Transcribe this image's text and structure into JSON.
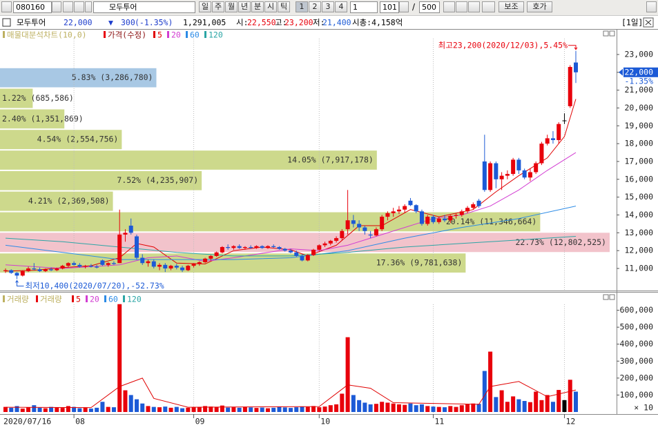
{
  "toolbar": {
    "code": "080160",
    "name": "모두투어",
    "periods": [
      "일",
      "주",
      "월",
      "년",
      "분",
      "시",
      "틱"
    ],
    "numbers": [
      "1",
      "2",
      "3",
      "4"
    ],
    "unit": "1",
    "count": "101",
    "separator": "/",
    "total": "500",
    "buttons": [
      "보조",
      "호가"
    ]
  },
  "info": {
    "name": "모두투어",
    "price": "22,000",
    "arrow": "▼",
    "change": "300",
    "change_pct": "(-1.35%)",
    "volume": "1,291,005",
    "open_label": "시:",
    "open": "22,550",
    "high_label": "고:",
    "high": "23,200",
    "low_label": "저:",
    "low": "21,400",
    "cap": "시총:4,158억",
    "period": "[1일]"
  },
  "chart_data": [
    {
      "type": "candlestick",
      "legend_title": "매물대분석차트(10,0)",
      "legend_title_color": "#bdb060",
      "up_color": "#e8000b",
      "down_color": "#1c5ad6",
      "flat_color": "#000000",
      "ylim": [
        9800,
        24430
      ],
      "yticks": [
        {
          "value": 11000,
          "label": "11,000"
        },
        {
          "value": 12000,
          "label": "12,000"
        },
        {
          "value": 13000,
          "label": "13,000"
        },
        {
          "value": 14000,
          "label": "14,000"
        },
        {
          "value": 15000,
          "label": "15,000"
        },
        {
          "value": 16000,
          "label": "16,000"
        },
        {
          "value": 17000,
          "label": "17,000"
        },
        {
          "value": 18000,
          "label": "18,000"
        },
        {
          "value": 19000,
          "label": "19,000"
        },
        {
          "value": 20000,
          "label": "20,000"
        },
        {
          "value": 21000,
          "label": "21,000"
        },
        {
          "value": 22000,
          "label": "22,000"
        },
        {
          "value": 23000,
          "label": "23,000"
        }
      ],
      "current": {
        "price": "22,000",
        "change": "-1.35%",
        "color": "#1c5ad6"
      },
      "annotations": {
        "high": "최고23,200(2020/12/03),5.45%",
        "low": "최저10,400(2020/07/20),-52.73%",
        "high_color": "#e8000b",
        "low_color": "#1c5ad6"
      },
      "series": [
        {
          "name": "가격(수정)",
          "color": "#e8000b",
          "open": [
            10850,
            10900,
            10750,
            10600,
            10850,
            11000,
            10950,
            10850,
            10950,
            10900,
            11000,
            11150,
            11300,
            11200,
            11100,
            11150,
            11100,
            11450,
            11200,
            11300,
            11300,
            12900,
            13400,
            12800,
            11600,
            11300,
            11400,
            11100,
            11200,
            11000,
            11150,
            11050,
            10900,
            11150,
            11250,
            11350,
            11550,
            11700,
            11900,
            12200,
            12150,
            12250,
            12150,
            12200,
            12150,
            12250,
            12150,
            12250,
            12200,
            12100,
            12000,
            11900,
            11700,
            11450,
            11750,
            12050,
            12300,
            12400,
            12550,
            12700,
            13200,
            13700,
            13500,
            13300,
            12900,
            12850,
            13200,
            13900,
            14100,
            14200,
            14300,
            14800,
            14550,
            14200,
            13500,
            13900,
            13600,
            13800,
            13700,
            13950,
            14000,
            14200,
            14400,
            14800,
            17000,
            15400,
            16900,
            16000,
            16200,
            16300,
            17100,
            16500,
            16100,
            16400,
            16900,
            18000,
            18300,
            18200,
            19300,
            20100,
            22550
          ],
          "high": [
            11000,
            10950,
            10800,
            10900,
            11100,
            11300,
            11050,
            11000,
            11050,
            11050,
            11200,
            11350,
            11400,
            11300,
            11200,
            11250,
            11200,
            11500,
            11350,
            11400,
            14300,
            13200,
            13800,
            12900,
            11800,
            11500,
            11500,
            11300,
            11300,
            11200,
            11250,
            11150,
            11200,
            11300,
            11400,
            11600,
            11750,
            11950,
            12250,
            12350,
            12300,
            12350,
            12250,
            12300,
            12300,
            12300,
            12300,
            12350,
            12250,
            12150,
            12100,
            12000,
            11800,
            11800,
            12100,
            12350,
            12500,
            12600,
            12800,
            13200,
            15400,
            14000,
            13700,
            13400,
            13100,
            13300,
            14000,
            14200,
            14400,
            14500,
            14600,
            14950,
            14600,
            14300,
            14000,
            14000,
            13900,
            14000,
            14000,
            14100,
            14300,
            14500,
            14700,
            14900,
            18500,
            17000,
            17000,
            16400,
            16500,
            17200,
            17200,
            16600,
            16600,
            17000,
            18100,
            18500,
            18700,
            19200,
            19700,
            22400,
            23200
          ],
          "low": [
            10750,
            10700,
            10400,
            10550,
            10800,
            10900,
            10800,
            10800,
            10850,
            10850,
            10950,
            11050,
            11150,
            11050,
            11000,
            11050,
            11000,
            11150,
            11100,
            11200,
            11300,
            12500,
            12900,
            11500,
            11200,
            11100,
            11000,
            10900,
            10800,
            10900,
            10950,
            10800,
            10850,
            11050,
            11150,
            11300,
            11450,
            11650,
            11850,
            12050,
            12050,
            12100,
            12050,
            12100,
            12100,
            12100,
            12100,
            12150,
            12050,
            11950,
            11850,
            11650,
            11400,
            11400,
            11700,
            12000,
            12200,
            12300,
            12450,
            12600,
            12900,
            13300,
            13100,
            12900,
            12700,
            12800,
            13100,
            13700,
            13900,
            14050,
            14100,
            14500,
            14100,
            13400,
            13400,
            13500,
            13500,
            13600,
            13550,
            13800,
            13900,
            14100,
            14300,
            14400,
            15300,
            15300,
            15500,
            15400,
            16000,
            16200,
            16300,
            16000,
            15900,
            16300,
            16800,
            17900,
            18000,
            18000,
            19100,
            20000,
            21400
          ],
          "close": [
            10900,
            10750,
            10600,
            10850,
            11000,
            10950,
            10850,
            10950,
            10900,
            11000,
            11150,
            11300,
            11200,
            11100,
            11150,
            11100,
            11050,
            11200,
            11300,
            11250,
            12900,
            13000,
            13000,
            11600,
            11300,
            11400,
            11100,
            11200,
            11000,
            11150,
            11050,
            10900,
            11150,
            11250,
            11350,
            11550,
            11700,
            11900,
            12200,
            12150,
            12250,
            12150,
            12200,
            12150,
            12250,
            12150,
            12250,
            12200,
            12100,
            12000,
            11900,
            11700,
            11450,
            11750,
            12050,
            12300,
            12400,
            12550,
            12700,
            13100,
            13700,
            13500,
            13300,
            13100,
            12850,
            13200,
            13900,
            14100,
            14200,
            14300,
            14500,
            14550,
            14200,
            13500,
            13900,
            13600,
            13800,
            13700,
            13950,
            14000,
            14200,
            14400,
            14600,
            14500,
            15400,
            16900,
            16000,
            16200,
            16300,
            17100,
            16500,
            16100,
            16400,
            16900,
            18000,
            18300,
            18200,
            19100,
            19300,
            22300,
            22000
          ]
        }
      ],
      "moving_averages": [
        {
          "name": "5",
          "color": "#e00000",
          "x": [
            0,
            5,
            10,
            15,
            20,
            23,
            26,
            30,
            35,
            40,
            45,
            50,
            53,
            58,
            62,
            66,
            71,
            76,
            82,
            86,
            90,
            95,
            98,
            100
          ],
          "values": [
            10850,
            10900,
            11050,
            11150,
            11600,
            12400,
            12200,
            11300,
            11250,
            12000,
            12200,
            12050,
            11700,
            12300,
            13400,
            13400,
            14300,
            13900,
            14300,
            15300,
            16200,
            17200,
            18400,
            20500
          ]
        },
        {
          "name": "20",
          "color": "#d23cd2",
          "x": [
            0,
            10,
            20,
            25,
            30,
            35,
            40,
            50,
            55,
            60,
            65,
            70,
            75,
            80,
            85,
            90,
            95,
            100
          ],
          "values": [
            11200,
            11000,
            11200,
            11600,
            11700,
            11400,
            11600,
            12100,
            12000,
            12300,
            12800,
            13300,
            13800,
            14000,
            14500,
            15400,
            16500,
            17500
          ]
        },
        {
          "name": "60",
          "color": "#2c8be6",
          "x": [
            0,
            10,
            20,
            30,
            40,
            50,
            60,
            70,
            80,
            90,
            100
          ],
          "values": [
            12300,
            11900,
            11500,
            11500,
            11500,
            11600,
            12000,
            12700,
            13300,
            13800,
            14500
          ]
        },
        {
          "name": "120",
          "color": "#2aa5a5",
          "x": [
            0,
            10,
            20,
            30,
            40,
            50,
            60,
            70,
            80,
            90,
            100
          ],
          "values": [
            12700,
            12500,
            12200,
            11900,
            11700,
            11700,
            11900,
            12200,
            12400,
            12600,
            12800
          ]
        }
      ],
      "profile": {
        "color": "#cdd98c",
        "max_color": "#f2c3cb",
        "bins": [
          10730,
          11880,
          13040,
          14190,
          15350,
          16500,
          17650,
          18810,
          19960,
          21120,
          22270
        ],
        "values": [
          17.36,
          22.73,
          20.14,
          4.21,
          7.52,
          14.05,
          4.54,
          2.4,
          1.22,
          5.83
        ],
        "volumes": [
          9781638,
          12802525,
          11346664,
          2369508,
          4235907,
          7917178,
          2554756,
          1351869,
          685586,
          3286780
        ],
        "value_labels": [
          "17.36% (9,781,638)",
          "22.73% (12,802,525)",
          "20.14% (11,346,664)",
          "4.21% (2,369,508)",
          "7.52% (4,235,907)",
          "14.05% (7,917,178)",
          "4.54% (2,554,756)",
          "2.40% (1,351,869)",
          "1.22% (685,586)",
          "5.83% (3,286,780)"
        ],
        "top_color": "#a8c8e4"
      }
    },
    {
      "type": "bar",
      "legend_title": "거래량",
      "legend_title_color": "#bdb060",
      "series_name": "거래량",
      "series_color": "#e8000b",
      "ylim": [
        0,
        700000
      ],
      "yticks": [
        {
          "value": 100000,
          "label": "100,000"
        },
        {
          "value": 200000,
          "label": "200,000"
        },
        {
          "value": 300000,
          "label": "300,000"
        },
        {
          "value": 400000,
          "label": "400,000"
        },
        {
          "value": 500000,
          "label": "500,000"
        },
        {
          "value": 600000,
          "label": "600,000"
        }
      ],
      "unit": "× 10",
      "categories": [
        "2020/07/16",
        null,
        null,
        null,
        null,
        null,
        null,
        null,
        null,
        null,
        null,
        null,
        "08",
        null,
        null,
        null,
        null,
        null,
        null,
        null,
        null,
        null,
        null,
        null,
        null,
        null,
        null,
        null,
        null,
        null,
        null,
        null,
        null,
        "09",
        null,
        null,
        null,
        null,
        null,
        null,
        null,
        null,
        null,
        null,
        null,
        null,
        null,
        null,
        null,
        null,
        null,
        null,
        null,
        null,
        null,
        "10",
        null,
        null,
        null,
        null,
        null,
        null,
        null,
        null,
        null,
        null,
        null,
        null,
        null,
        null,
        null,
        null,
        null,
        null,
        null,
        "11",
        null,
        null,
        null,
        null,
        null,
        null,
        null,
        null,
        null,
        null,
        null,
        null,
        null,
        null,
        null,
        null,
        null,
        null,
        null,
        null,
        null,
        null,
        "12",
        null,
        null
      ],
      "values": [
        30000,
        25000,
        35000,
        20000,
        28000,
        40000,
        25000,
        22000,
        30000,
        27000,
        24000,
        35000,
        30000,
        22000,
        26000,
        20000,
        25000,
        60000,
        30000,
        28000,
        636000,
        128000,
        100000,
        75000,
        50000,
        35000,
        30000,
        28000,
        32000,
        25000,
        30000,
        22000,
        25000,
        28000,
        30000,
        35000,
        32000,
        30000,
        38000,
        26000,
        28000,
        25000,
        30000,
        27000,
        24000,
        26000,
        22000,
        25000,
        30000,
        27000,
        24000,
        28000,
        32000,
        30000,
        35000,
        28000,
        32000,
        40000,
        45000,
        108000,
        441000,
        100000,
        70000,
        55000,
        45000,
        48000,
        60000,
        55000,
        50000,
        45000,
        42000,
        50000,
        40000,
        45000,
        35000,
        32000,
        30000,
        28000,
        35000,
        30000,
        40000,
        45000,
        50000,
        48000,
        242000,
        356000,
        88000,
        128000,
        60000,
        92000,
        75000,
        65000,
        58000,
        120000,
        70000,
        100000,
        60000,
        130000,
        70000,
        190000,
        120000
      ],
      "ma_legend": [
        {
          "name": "5",
          "color": "#e00000"
        },
        {
          "name": "20",
          "color": "#d23cd2"
        },
        {
          "name": "60",
          "color": "#2c8be6"
        },
        {
          "name": "120",
          "color": "#2aa5a5"
        }
      ],
      "ma_line": {
        "color": "#e00000",
        "x": [
          0,
          15,
          20,
          24,
          26,
          32,
          55,
          60,
          64,
          68,
          83,
          85,
          90,
          95,
          100
        ],
        "values": [
          28000,
          26000,
          150000,
          200000,
          80000,
          28000,
          32000,
          160000,
          140000,
          55000,
          45000,
          150000,
          180000,
          90000,
          130000
        ]
      }
    }
  ]
}
